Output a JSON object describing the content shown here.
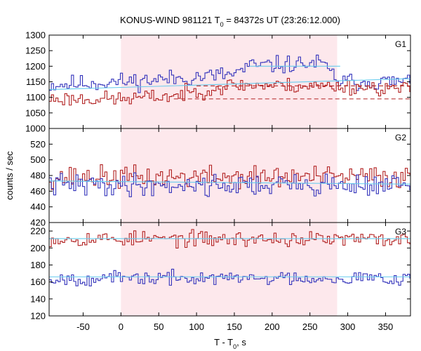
{
  "chart_data": {
    "type": "line",
    "title_prefix": "KONUS-WIND 981121 T",
    "title_sub": "0",
    "title_suffix": " = 84372s UT (23:26:12.000)",
    "xlabel_prefix": "T - T",
    "xlabel_sub": "0",
    "xlabel_suffix": ", s",
    "ylabel": "counts / sec",
    "xlim": [
      -95,
      383
    ],
    "x_ticks": [
      -50,
      0,
      50,
      100,
      150,
      200,
      250,
      300,
      350
    ],
    "x_tick_labels": [
      "-50",
      "0",
      "50",
      "100",
      "150",
      "200",
      "250",
      "300",
      "350"
    ],
    "shaded_interval": [
      0,
      286
    ],
    "bin_width": 2.944,
    "colors": {
      "red": "#b22222",
      "blue": "#3333bb",
      "cyan": "#66ccee",
      "shade": "#fde8ec",
      "frame": "#000000"
    },
    "panels": [
      {
        "label": "G1",
        "ylim": [
          1000,
          1300
        ],
        "y_ticks": [
          1000,
          1050,
          1100,
          1150,
          1200,
          1250,
          1300
        ],
        "y_tick_labels": [
          "1000",
          "1050",
          "1100",
          "1150",
          "1200",
          "1250",
          "1300"
        ],
        "series": [
          {
            "color_key": "blue",
            "segments": [
              [
                -95,
                1140
              ],
              [
                0,
                1150
              ],
              [
                70,
                1160
              ],
              [
                150,
                1175
              ],
              [
                170,
                1200
              ],
              [
                265,
                1210
              ],
              [
                290,
                1150
              ],
              [
                383,
                1150
              ]
            ],
            "noise": 28,
            "seed": 11
          },
          {
            "color_key": "red",
            "segments": [
              [
                -95,
                1095
              ],
              [
                0,
                1095
              ],
              [
                70,
                1105
              ],
              [
                150,
                1140
              ],
              [
                290,
                1135
              ],
              [
                383,
                1125
              ]
            ],
            "noise": 24,
            "seed": 23
          }
        ],
        "fit_lines": [
          {
            "color_key": "cyan",
            "dashed": false,
            "points": [
              [
                -95,
                1125
              ],
              [
                383,
                1160
              ]
            ]
          },
          {
            "color_key": "cyan",
            "dashed": false,
            "points": [
              [
                170,
                1200
              ],
              [
                290,
                1200
              ]
            ]
          },
          {
            "color_key": "red",
            "dashed": true,
            "points": [
              [
                70,
                1095
              ],
              [
                383,
                1095
              ]
            ]
          },
          {
            "color_key": "red",
            "dashed": true,
            "points": [
              [
                100,
                1137
              ],
              [
                383,
                1137
              ]
            ]
          }
        ]
      },
      {
        "label": "G2",
        "ylim": [
          420,
          540
        ],
        "y_ticks": [
          420,
          440,
          460,
          480,
          500,
          520
        ],
        "y_tick_labels": [
          "420",
          "440",
          "460",
          "480",
          "500",
          "520"
        ],
        "series": [
          {
            "color_key": "red",
            "segments": [
              [
                -95,
                478
              ],
              [
                383,
                478
              ]
            ],
            "noise": 14,
            "seed": 37
          },
          {
            "color_key": "blue",
            "segments": [
              [
                -95,
                468
              ],
              [
                383,
                468
              ]
            ],
            "noise": 14,
            "seed": 41
          }
        ],
        "fit_lines": [
          {
            "color_key": "cyan",
            "dashed": false,
            "points": [
              [
                -95,
                473
              ],
              [
                383,
                469
              ]
            ]
          }
        ]
      },
      {
        "label": "G3",
        "ylim": [
          120,
          230
        ],
        "y_ticks": [
          120,
          140,
          160,
          180,
          200,
          220
        ],
        "y_tick_labels": [
          "120",
          "140",
          "160",
          "180",
          "200",
          "220"
        ],
        "series": [
          {
            "color_key": "red",
            "segments": [
              [
                -95,
                211
              ],
              [
                383,
                210
              ]
            ],
            "noise": 9,
            "seed": 53
          },
          {
            "color_key": "blue",
            "segments": [
              [
                -95,
                164
              ],
              [
                383,
                165
              ]
            ],
            "noise": 8,
            "seed": 67
          }
        ],
        "fit_lines": [
          {
            "color_key": "cyan",
            "dashed": false,
            "points": [
              [
                -95,
                211
              ],
              [
                383,
                211
              ]
            ]
          },
          {
            "color_key": "cyan",
            "dashed": false,
            "points": [
              [
                -95,
                166
              ],
              [
                383,
                166
              ]
            ]
          }
        ]
      }
    ]
  }
}
